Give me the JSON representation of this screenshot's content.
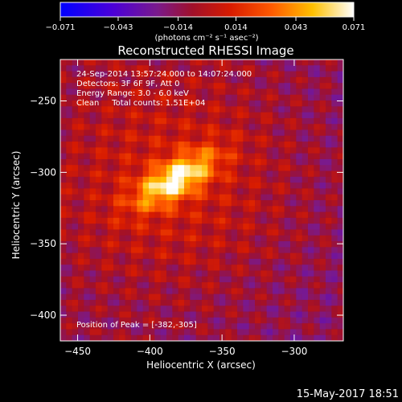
{
  "chart_data": {
    "type": "heatmap",
    "title": "Reconstructed RHESSI Image",
    "xlabel": "Heliocentric X (arcsec)",
    "ylabel": "Heliocentric Y (arcsec)",
    "xlim": [
      -462,
      -266
    ],
    "ylim": [
      -418,
      -221
    ],
    "x_ticks": [
      -450,
      -400,
      -350,
      -300
    ],
    "y_ticks": [
      -250,
      -300,
      -350,
      -400
    ],
    "colorbar": {
      "ticks": [
        -0.071,
        -0.043,
        -0.014,
        0.014,
        0.043,
        0.071
      ],
      "tick_labels": [
        "−0.071",
        "−0.043",
        "−0.014",
        "0.014",
        "0.043",
        "0.071"
      ],
      "units_label": "(photons cm⁻² s⁻¹ asec⁻²)",
      "range": [
        -0.071,
        0.071
      ]
    },
    "annotations": [
      "24-Sep-2014 13:57:24.000 to 14:07:24.000",
      "Detectors: 3F 6F 9F, Att 0",
      "Energy Range: 3.0 - 6.0 keV",
      "Clean     Total counts: 1.51E+04"
    ],
    "peak_label": "Position of Peak = [-382,-305]",
    "peak": {
      "x": -382,
      "y": -305
    },
    "grid": false
  },
  "footer": {
    "date": "15-May-2017 18:51"
  }
}
